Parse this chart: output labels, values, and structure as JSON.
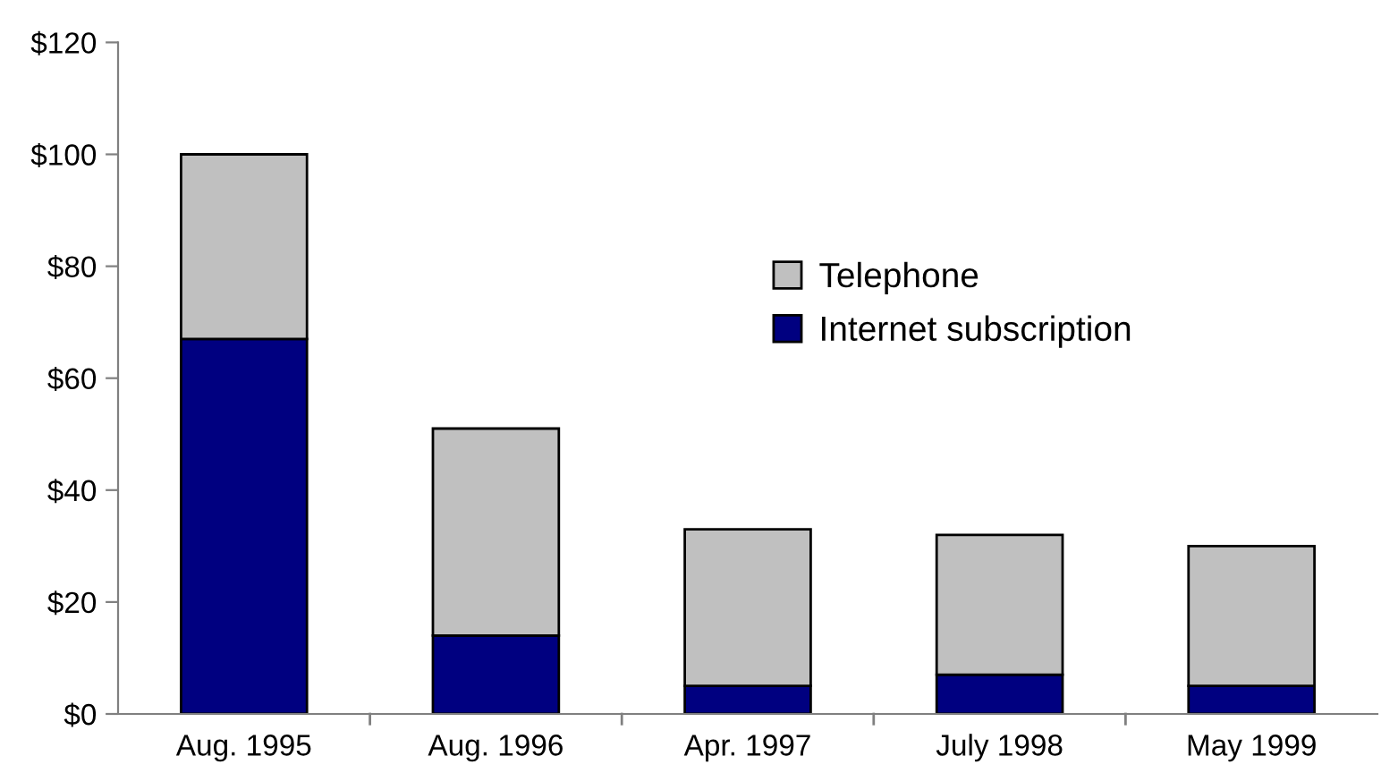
{
  "chart_data": {
    "type": "bar",
    "stacked": true,
    "categories": [
      "Aug. 1995",
      "Aug. 1996",
      "Apr. 1997",
      "July 1998",
      "May 1999"
    ],
    "series": [
      {
        "name": "Internet subscription",
        "color": "#000080",
        "values": [
          67,
          14,
          5,
          7,
          5
        ]
      },
      {
        "name": "Telephone",
        "color": "#c0c0c0",
        "values": [
          33,
          37,
          28,
          25,
          25
        ]
      }
    ],
    "ylim": [
      0,
      120
    ],
    "yticks": [
      {
        "value": 0,
        "label": "$0"
      },
      {
        "value": 20,
        "label": "$20"
      },
      {
        "value": 40,
        "label": "$40"
      },
      {
        "value": 60,
        "label": "$60"
      },
      {
        "value": 80,
        "label": "$80"
      },
      {
        "value": 100,
        "label": "$100"
      },
      {
        "value": 120,
        "label": "$120"
      }
    ],
    "grid": false,
    "legend": "top right"
  }
}
